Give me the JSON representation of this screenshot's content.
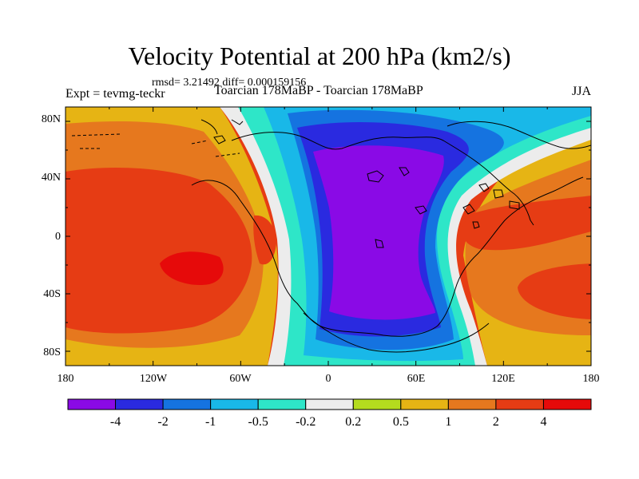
{
  "title": "Velocity Potential at 200 hPa (km2/s)",
  "stats": "rmsd= 3.21492 diff= 0.000159156",
  "expt": "Expt = tevmg-teckr",
  "case_info": "Toarcian 178MaBP - Toarcian 178MaBP",
  "season": "JJA",
  "lat_labels": [
    "80N",
    "40N",
    "0",
    "40S",
    "80S"
  ],
  "lon_labels": [
    "180",
    "120W",
    "60W",
    "0",
    "60E",
    "120E",
    "180"
  ],
  "colorbar": {
    "colors": [
      "#8a0ae6",
      "#2a2ae0",
      "#1573e0",
      "#19b8e8",
      "#2ee6c8",
      "#ececec",
      "#b4dc1e",
      "#e6b414",
      "#e6781e",
      "#e63c14",
      "#e60a0a"
    ],
    "labels": [
      "-4",
      "-2",
      "-1",
      "-0.5",
      "-0.2",
      "0.2",
      "0.5",
      "1",
      "2",
      "4"
    ]
  },
  "palette": {
    "neg4": "#8a0ae6",
    "neg2": "#2a2ae0",
    "neg1": "#1573e0",
    "neg05": "#19b8e8",
    "neg02": "#2ee6c8",
    "zero": "#ececec",
    "p02": "#b4dc1e",
    "p05": "#e6b414",
    "p1": "#e6781e",
    "p2": "#e63c14",
    "p4": "#e60a0a"
  }
}
